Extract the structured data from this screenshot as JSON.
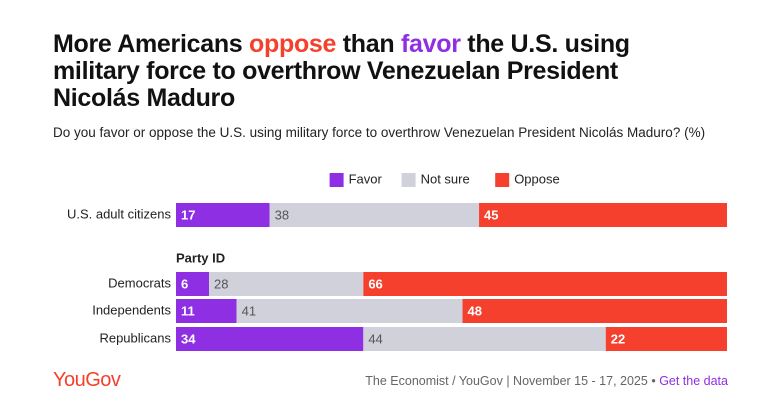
{
  "chart_data": {
    "type": "stacked-bar-horizontal",
    "title_parts": [
      {
        "text": "More Americans "
      },
      {
        "text": "oppose",
        "color": "#f4402c"
      },
      {
        "text": " than "
      },
      {
        "text": "favor",
        "color": "#8f2fe3"
      },
      {
        "text": " the U.S. using military force to overthrow Venezuelan President Nicolás Maduro"
      }
    ],
    "subtitle": "Do you favor or oppose the U.S. using military force to overthrow Venezuelan President Nicolás Maduro? (%)",
    "categories": [
      "U.S. adult citizens",
      "Democrats",
      "Independents",
      "Republicans"
    ],
    "groups": [
      {
        "label": "Party ID",
        "from": "Democrats"
      }
    ],
    "series": [
      {
        "name": "Favor",
        "color": "#8f2fe3",
        "label_color": "#ffffff",
        "values": [
          17,
          6,
          11,
          34
        ]
      },
      {
        "name": "Not sure",
        "color": "#d0d1db",
        "label_color": "#555555",
        "values": [
          38,
          28,
          41,
          44
        ]
      },
      {
        "name": "Oppose",
        "color": "#f4402c",
        "label_color": "#ffffff",
        "values": [
          45,
          66,
          48,
          22
        ]
      }
    ],
    "xlim": [
      0,
      100
    ],
    "legend": "top",
    "logo": "YouGov",
    "source": "The Economist / YouGov | November 15 - 17, 2025 •",
    "link": "Get the data"
  }
}
